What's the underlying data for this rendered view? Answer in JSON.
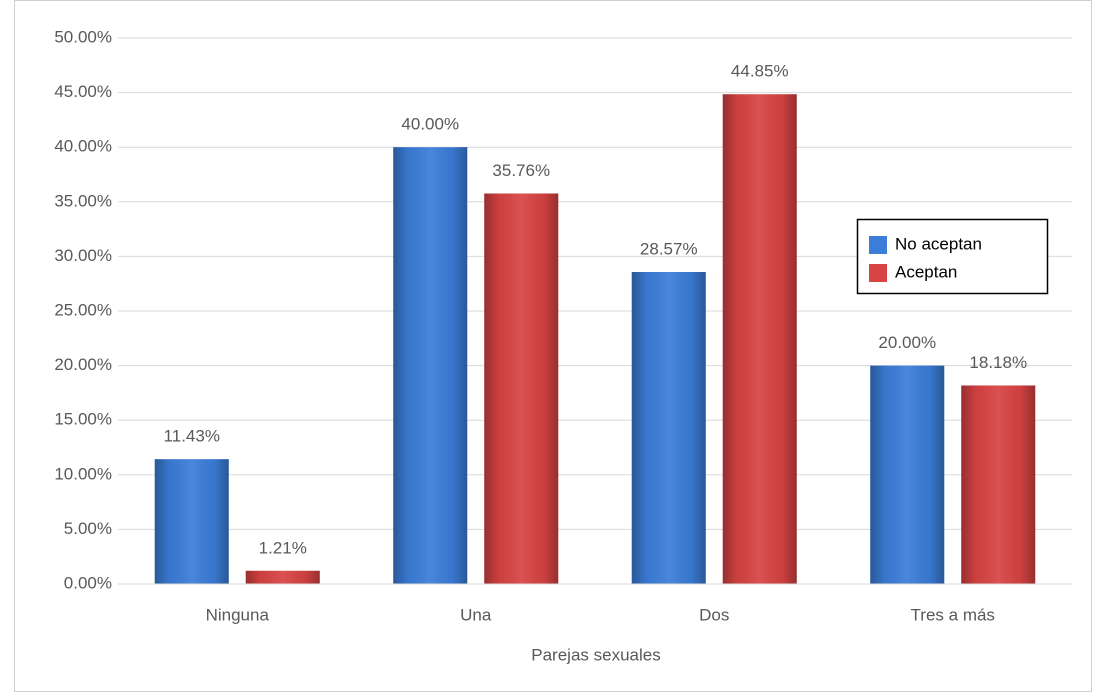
{
  "chart_data": {
    "type": "bar",
    "x_label": "Parejas sexuales",
    "categories": [
      "Ninguna",
      "Una",
      "Dos",
      "Tres a más"
    ],
    "series": [
      {
        "name": "No aceptan",
        "color": "#3b7dd8",
        "values": [
          11.43,
          40.0,
          28.57,
          20.0
        ],
        "value_labels": [
          "11.43%",
          "40.00%",
          "28.57%",
          "20.00%"
        ]
      },
      {
        "name": "Aceptan",
        "color": "#d84343",
        "values": [
          1.21,
          35.76,
          44.85,
          18.18
        ],
        "value_labels": [
          "1.21%",
          "35.76%",
          "44.85%",
          "18.18%"
        ]
      }
    ],
    "ylim": [
      0,
      50
    ],
    "yticks": [
      {
        "value": 0,
        "label": "0.00%"
      },
      {
        "value": 5,
        "label": "5.00%"
      },
      {
        "value": 10,
        "label": "10.00%"
      },
      {
        "value": 15,
        "label": "15.00%"
      },
      {
        "value": 20,
        "label": "20.00%"
      },
      {
        "value": 25,
        "label": "25.00%"
      },
      {
        "value": 30,
        "label": "30.00%"
      },
      {
        "value": 35,
        "label": "35.00%"
      },
      {
        "value": 40,
        "label": "40.00%"
      },
      {
        "value": 45,
        "label": "45.00%"
      },
      {
        "value": 50,
        "label": "50.00%"
      }
    ],
    "grid": true,
    "legend": "right"
  }
}
